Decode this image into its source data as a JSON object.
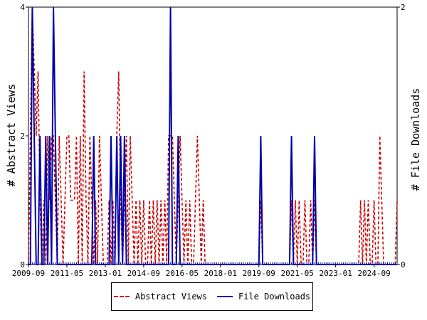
{
  "chart_data": {
    "type": "line",
    "x_ticks": [
      "2009-09",
      "2011-05",
      "2013-01",
      "2014-09",
      "2016-05",
      "2018-01",
      "2019-09",
      "2021-05",
      "2023-01",
      "2024-09"
    ],
    "x_range": [
      "2009-09",
      "2025-09"
    ],
    "y_left": {
      "label": "# Abstract Views",
      "range": [
        0,
        4
      ],
      "ticks": [
        "0",
        "2",
        "4"
      ]
    },
    "y_right": {
      "label": "# File Downloads",
      "range": [
        0,
        2
      ],
      "ticks": [
        "0",
        "2"
      ]
    },
    "grid": false,
    "legend_position": "bottom",
    "series": [
      {
        "name": "Abstract Views",
        "axis": "left",
        "style": "dashed",
        "color": "#cc0000",
        "points": [
          [
            "2009-09",
            0
          ],
          [
            "2009-10",
            2
          ],
          [
            "2009-11",
            4
          ],
          [
            "2009-12",
            3
          ],
          [
            "2010-01",
            2
          ],
          [
            "2010-02",
            3
          ],
          [
            "2010-03",
            1
          ],
          [
            "2010-04",
            0
          ],
          [
            "2010-05",
            1
          ],
          [
            "2010-06",
            0
          ],
          [
            "2010-07",
            2
          ],
          [
            "2010-08",
            1
          ],
          [
            "2010-09",
            2
          ],
          [
            "2010-10",
            2
          ],
          [
            "2010-11",
            1
          ],
          [
            "2010-12",
            0
          ],
          [
            "2011-01",
            2
          ],
          [
            "2011-02",
            1
          ],
          [
            "2011-03",
            0
          ],
          [
            "2011-04",
            1
          ],
          [
            "2011-05",
            2
          ],
          [
            "2011-06",
            2
          ],
          [
            "2011-07",
            1
          ],
          [
            "2011-08",
            1
          ],
          [
            "2011-09",
            1
          ],
          [
            "2011-10",
            2
          ],
          [
            "2011-11",
            0
          ],
          [
            "2011-12",
            2
          ],
          [
            "2012-01",
            0
          ],
          [
            "2012-02",
            3
          ],
          [
            "2012-03",
            1
          ],
          [
            "2012-04",
            0
          ],
          [
            "2012-05",
            2
          ],
          [
            "2012-06",
            1
          ],
          [
            "2012-07",
            0
          ],
          [
            "2012-08",
            1
          ],
          [
            "2012-09",
            0
          ],
          [
            "2012-10",
            2
          ],
          [
            "2012-11",
            1
          ],
          [
            "2012-12",
            0
          ],
          [
            "2013-01",
            0
          ],
          [
            "2013-02",
            0
          ],
          [
            "2013-03",
            1
          ],
          [
            "2013-04",
            0
          ],
          [
            "2013-05",
            1
          ],
          [
            "2013-06",
            0
          ],
          [
            "2013-07",
            2
          ],
          [
            "2013-08",
            3
          ],
          [
            "2013-09",
            1
          ],
          [
            "2013-10",
            0
          ],
          [
            "2013-11",
            1
          ],
          [
            "2013-12",
            2
          ],
          [
            "2014-01",
            0
          ],
          [
            "2014-02",
            2
          ],
          [
            "2014-03",
            1
          ],
          [
            "2014-04",
            0
          ],
          [
            "2014-05",
            1
          ],
          [
            "2014-06",
            0
          ],
          [
            "2014-07",
            1
          ],
          [
            "2014-08",
            0
          ],
          [
            "2014-09",
            1
          ],
          [
            "2014-10",
            0
          ],
          [
            "2014-11",
            0
          ],
          [
            "2014-12",
            1
          ],
          [
            "2015-01",
            0
          ],
          [
            "2015-02",
            1
          ],
          [
            "2015-03",
            0
          ],
          [
            "2015-04",
            1
          ],
          [
            "2015-05",
            0
          ],
          [
            "2015-06",
            1
          ],
          [
            "2015-07",
            0
          ],
          [
            "2015-08",
            1
          ],
          [
            "2015-09",
            0
          ],
          [
            "2015-10",
            2
          ],
          [
            "2015-11",
            2
          ],
          [
            "2015-12",
            2
          ],
          [
            "2016-01",
            1
          ],
          [
            "2016-02",
            0
          ],
          [
            "2016-03",
            1
          ],
          [
            "2016-04",
            2
          ],
          [
            "2016-05",
            1
          ],
          [
            "2016-06",
            0
          ],
          [
            "2016-07",
            1
          ],
          [
            "2016-08",
            0
          ],
          [
            "2016-09",
            1
          ],
          [
            "2016-10",
            0
          ],
          [
            "2016-11",
            0
          ],
          [
            "2016-12",
            1
          ],
          [
            "2017-01",
            2
          ],
          [
            "2017-02",
            1
          ],
          [
            "2017-03",
            0
          ],
          [
            "2017-04",
            1
          ],
          [
            "2017-05",
            0
          ],
          [
            "2017-06",
            0
          ],
          [
            "2017-07",
            0
          ],
          [
            "2017-08",
            0
          ],
          [
            "2017-09",
            0
          ],
          [
            "2018-01",
            0
          ],
          [
            "2019-09",
            0
          ],
          [
            "2019-10",
            1
          ],
          [
            "2019-11",
            0
          ],
          [
            "2020-01",
            0
          ],
          [
            "2021-01",
            0
          ],
          [
            "2021-02",
            1
          ],
          [
            "2021-03",
            0
          ],
          [
            "2021-04",
            1
          ],
          [
            "2021-05",
            0
          ],
          [
            "2021-06",
            1
          ],
          [
            "2021-07",
            0
          ],
          [
            "2021-08",
            0
          ],
          [
            "2021-09",
            1
          ],
          [
            "2021-10",
            0
          ],
          [
            "2021-11",
            0
          ],
          [
            "2021-12",
            1
          ],
          [
            "2022-01",
            0
          ],
          [
            "2022-02",
            1
          ],
          [
            "2022-03",
            0
          ],
          [
            "2023-01",
            0
          ],
          [
            "2024-01",
            0
          ],
          [
            "2024-02",
            1
          ],
          [
            "2024-03",
            0
          ],
          [
            "2024-04",
            1
          ],
          [
            "2024-05",
            0
          ],
          [
            "2024-06",
            1
          ],
          [
            "2024-07",
            0
          ],
          [
            "2024-08",
            0
          ],
          [
            "2024-09",
            1
          ],
          [
            "2024-10",
            0
          ],
          [
            "2024-11",
            0
          ],
          [
            "2024-12",
            2
          ],
          [
            "2025-01",
            1
          ],
          [
            "2025-02",
            0
          ],
          [
            "2025-06",
            0
          ],
          [
            "2025-07",
            0
          ],
          [
            "2025-08",
            0
          ],
          [
            "2025-09",
            1
          ]
        ]
      },
      {
        "name": "File Downloads",
        "axis": "right",
        "style": "solid",
        "color": "#0000aa",
        "points": [
          [
            "2009-09",
            0
          ],
          [
            "2009-10",
            0
          ],
          [
            "2009-11",
            2
          ],
          [
            "2009-12",
            1
          ],
          [
            "2010-01",
            0
          ],
          [
            "2010-02",
            0
          ],
          [
            "2010-03",
            1
          ],
          [
            "2010-04",
            0
          ],
          [
            "2010-05",
            0
          ],
          [
            "2010-06",
            1
          ],
          [
            "2010-07",
            0
          ],
          [
            "2010-08",
            1
          ],
          [
            "2010-09",
            0
          ],
          [
            "2010-10",
            2
          ],
          [
            "2010-11",
            1
          ],
          [
            "2010-12",
            0
          ],
          [
            "2011-01",
            0
          ],
          [
            "2012-01",
            0
          ],
          [
            "2012-06",
            0
          ],
          [
            "2012-07",
            1
          ],
          [
            "2012-08",
            0
          ],
          [
            "2013-01",
            0
          ],
          [
            "2013-02",
            0
          ],
          [
            "2013-03",
            0
          ],
          [
            "2013-04",
            1
          ],
          [
            "2013-05",
            0
          ],
          [
            "2013-06",
            0
          ],
          [
            "2013-07",
            1
          ],
          [
            "2013-08",
            0
          ],
          [
            "2013-09",
            1
          ],
          [
            "2013-10",
            0
          ],
          [
            "2013-11",
            1
          ],
          [
            "2013-12",
            0
          ],
          [
            "2015-01",
            0
          ],
          [
            "2015-10",
            0
          ],
          [
            "2015-11",
            2
          ],
          [
            "2015-12",
            0
          ],
          [
            "2016-01",
            0
          ],
          [
            "2016-02",
            0
          ],
          [
            "2016-03",
            1
          ],
          [
            "2016-04",
            0
          ],
          [
            "2019-09",
            0
          ],
          [
            "2019-10",
            1
          ],
          [
            "2019-11",
            0
          ],
          [
            "2021-01",
            0
          ],
          [
            "2021-02",
            1
          ],
          [
            "2021-03",
            0
          ],
          [
            "2021-04",
            0
          ],
          [
            "2021-05",
            0
          ],
          [
            "2022-01",
            0
          ],
          [
            "2022-02",
            1
          ],
          [
            "2022-03",
            0
          ],
          [
            "2025-09",
            0
          ]
        ]
      }
    ]
  }
}
